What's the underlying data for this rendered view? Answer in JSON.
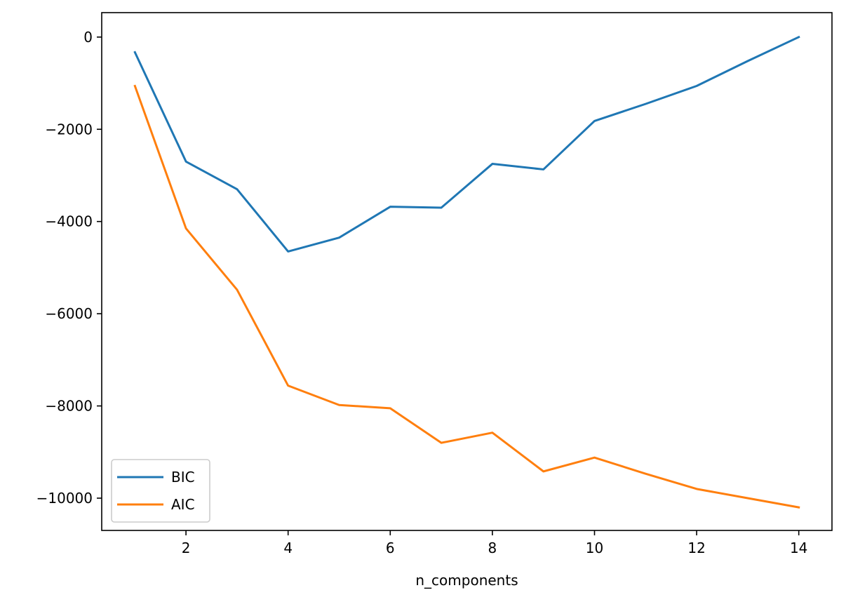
{
  "chart_data": {
    "type": "line",
    "title": "",
    "xlabel": "n_components",
    "ylabel": "",
    "xlim": [
      0.35,
      14.65
    ],
    "ylim": [
      -10700,
      530
    ],
    "x_ticks": [
      2,
      4,
      6,
      8,
      10,
      12,
      14
    ],
    "y_ticks": [
      0,
      -2000,
      -4000,
      -6000,
      -8000,
      -10000
    ],
    "x_tick_labels": [
      "2",
      "4",
      "6",
      "8",
      "10",
      "12",
      "14"
    ],
    "y_tick_labels": [
      "0",
      "−2000",
      "−4000",
      "−6000",
      "−8000",
      "−10000"
    ],
    "grid": false,
    "legend_position": "lower-left",
    "series": [
      {
        "name": "BIC",
        "color": "#1f77b4",
        "x": [
          1,
          2,
          3,
          4,
          5,
          6,
          7,
          8,
          9,
          10,
          11,
          12,
          13,
          14
        ],
        "y": [
          -330,
          -2700,
          -3300,
          -4650,
          -4350,
          -3680,
          -3700,
          -2750,
          -2870,
          -1820,
          -1450,
          -1060,
          -520,
          0
        ]
      },
      {
        "name": "AIC",
        "color": "#ff7f0e",
        "x": [
          1,
          2,
          3,
          4,
          5,
          6,
          7,
          8,
          9,
          10,
          11,
          12,
          13,
          14
        ],
        "y": [
          -1060,
          -4150,
          -5480,
          -7560,
          -7980,
          -8050,
          -8800,
          -8580,
          -9420,
          -9120,
          -9470,
          -9800,
          -10000,
          -10200
        ]
      }
    ]
  }
}
